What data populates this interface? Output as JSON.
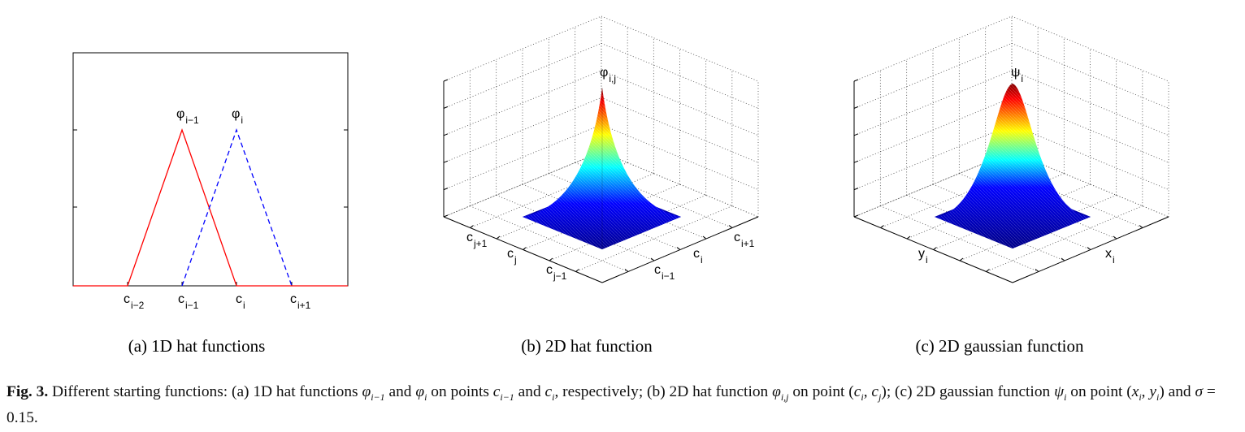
{
  "panels": [
    {
      "labels": [
        {
          "base": "φ",
          "sub": "i−1"
        },
        {
          "base": "φ",
          "sub": "i"
        }
      ],
      "x_labels": [
        {
          "base": "c",
          "sub": "i−2"
        },
        {
          "base": "c",
          "sub": "i−1"
        },
        {
          "base": "c",
          "sub": "i"
        },
        {
          "base": "c",
          "sub": "i+1"
        }
      ],
      "caption": "(a) 1D hat functions"
    },
    {
      "labels": [
        {
          "base": "φ",
          "sub": "i,j"
        }
      ],
      "left_axis_labels": [
        {
          "base": "c",
          "sub": "j+1"
        },
        {
          "base": "c",
          "sub": "j"
        },
        {
          "base": "c",
          "sub": "j−1"
        }
      ],
      "right_axis_labels": [
        {
          "base": "c",
          "sub": "i+1"
        },
        {
          "base": "c",
          "sub": "i"
        },
        {
          "base": "c",
          "sub": "i−1"
        }
      ],
      "caption": "(b) 2D hat function"
    },
    {
      "labels": [
        {
          "base": "ψ",
          "sub": "i"
        }
      ],
      "left_axis_labels": [
        {
          "base": "y",
          "sub": "i"
        }
      ],
      "right_axis_labels": [
        {
          "base": "x",
          "sub": "i"
        }
      ],
      "caption": "(c) 2D gaussian function"
    }
  ],
  "caption": {
    "label": "Fig. 3.",
    "parts": [
      " Different starting functions: (a) 1D hat functions ",
      {
        "base": "φ",
        "sub": "i−1"
      },
      " and ",
      {
        "base": "φ",
        "sub": "i"
      },
      " on points ",
      {
        "base": "c",
        "sub": "i−1"
      },
      " and ",
      {
        "base": "c",
        "sub": "i"
      },
      ", respectively; (b) 2D hat function ",
      {
        "base": "φ",
        "sub": "i,j"
      },
      " on point (",
      {
        "base": "c",
        "sub": "i"
      },
      ", ",
      {
        "base": "c",
        "sub": "j"
      },
      "); (c) 2D gaussian function ",
      {
        "base": "ψ",
        "sub": "i"
      },
      " on point (",
      {
        "base": "x",
        "sub": "i"
      },
      ", ",
      {
        "base": "y",
        "sub": "i"
      },
      ") and ",
      {
        "base": "σ"
      },
      " = 0.15."
    ]
  }
}
